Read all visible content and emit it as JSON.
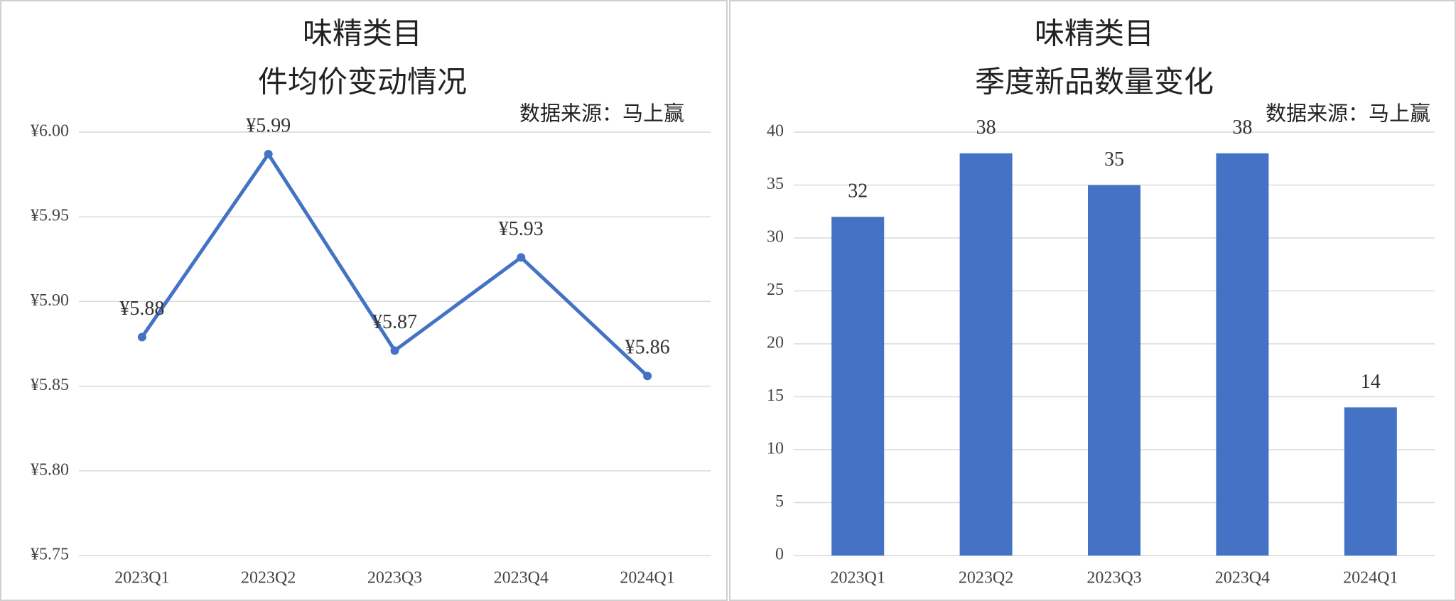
{
  "chart_data": [
    {
      "type": "line",
      "title": "味精类目",
      "subtitle": "件均价变动情况",
      "annotation": "数据来源：马上赢",
      "categories": [
        "2023Q1",
        "2023Q2",
        "2023Q3",
        "2023Q4",
        "2024Q1"
      ],
      "values": [
        5.879,
        5.987,
        5.871,
        5.926,
        5.856
      ],
      "value_labels": [
        "¥5.88",
        "¥5.99",
        "¥5.87",
        "¥5.93",
        "¥5.86"
      ],
      "color": "#4472c4",
      "ylim": [
        5.75,
        6.0
      ],
      "yticks": [
        {
          "value": 5.75,
          "label": "¥5.75"
        },
        {
          "value": 5.8,
          "label": "¥5.80"
        },
        {
          "value": 5.85,
          "label": "¥5.85"
        },
        {
          "value": 5.9,
          "label": "¥5.90"
        },
        {
          "value": 5.95,
          "label": "¥5.95"
        },
        {
          "value": 6.0,
          "label": "¥6.00"
        }
      ],
      "grid": true
    },
    {
      "type": "bar",
      "title": "味精类目",
      "subtitle": "季度新品数量变化",
      "annotation": "数据来源：马上赢",
      "categories": [
        "2023Q1",
        "2023Q2",
        "2023Q3",
        "2023Q4",
        "2024Q1"
      ],
      "values": [
        32,
        38,
        35,
        38,
        14
      ],
      "color": "#4472c4",
      "ylim": [
        0,
        40
      ],
      "yticks": [
        0,
        5,
        10,
        15,
        20,
        25,
        30,
        35,
        40
      ],
      "grid": true
    }
  ]
}
